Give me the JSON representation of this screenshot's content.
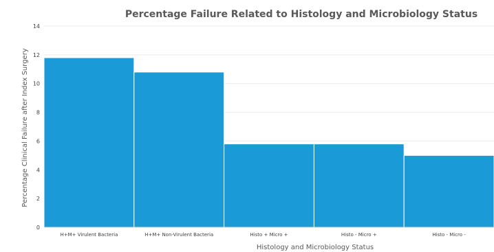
{
  "chart_data": {
    "type": "bar",
    "title": "Percentage Failure Related to Histology and Microbiology Status",
    "xlabel": "Histology and Microbiology Status",
    "ylabel": "Percentage Clinical Failure after Index Surgery",
    "categories": [
      "H+M+ Virulent Bacteria",
      "H+M+ Non-Virulent Bacteria",
      "Histo +  Micro +",
      "Histo -  Micro +",
      "Histo -  Micro -"
    ],
    "values": [
      11.8,
      10.8,
      5.8,
      5.8,
      5.0
    ],
    "ylim": [
      0,
      14
    ],
    "yticks": [
      0,
      2,
      4,
      6,
      8,
      10,
      12,
      14
    ],
    "grid": true,
    "legend": "none",
    "bar_color": "#1a9ad6"
  }
}
